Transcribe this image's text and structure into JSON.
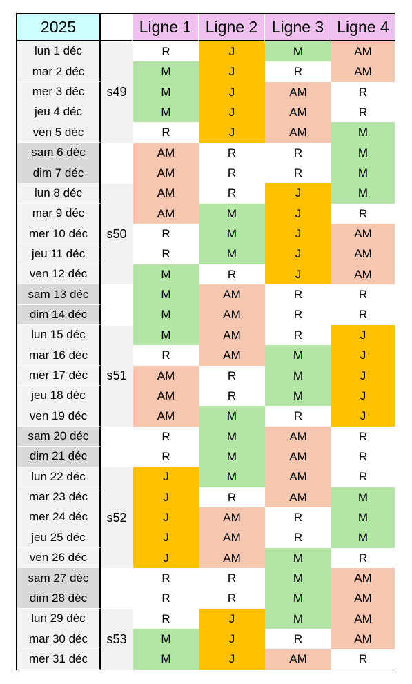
{
  "year": "2025",
  "lines": [
    "Ligne 1",
    "Ligne 2",
    "Ligne 3",
    "Ligne 4"
  ],
  "colors": {
    "year_bg": "#ccffff",
    "header_bg": "#f0c0f0",
    "date_weekday_bg": "#f2f2f2",
    "date_weekend_bg": "#d9d9d9",
    "week_bg": "#f2f2f2",
    "M": "#b3e6a6",
    "J": "#ffc000",
    "AM": "#f6c6b0",
    "R": "#ffffff"
  },
  "weeks": [
    {
      "label": "s49",
      "start": 0,
      "count": 5
    },
    {
      "label": "s50",
      "start": 7,
      "count": 5
    },
    {
      "label": "s51",
      "start": 14,
      "count": 5
    },
    {
      "label": "s52",
      "start": 21,
      "count": 5
    },
    {
      "label": "s53",
      "start": 28,
      "count": 3
    }
  ],
  "rows": [
    {
      "date": "lun 1 déc",
      "weekend": false,
      "codes": [
        "R",
        "J",
        "M",
        "AM"
      ]
    },
    {
      "date": "mar 2 déc",
      "weekend": false,
      "codes": [
        "M",
        "J",
        "R",
        "AM"
      ]
    },
    {
      "date": "mer 3 déc",
      "weekend": false,
      "codes": [
        "M",
        "J",
        "AM",
        "R"
      ]
    },
    {
      "date": "jeu 4 déc",
      "weekend": false,
      "codes": [
        "M",
        "J",
        "AM",
        "R"
      ]
    },
    {
      "date": "ven 5 déc",
      "weekend": false,
      "codes": [
        "R",
        "J",
        "AM",
        "M"
      ]
    },
    {
      "date": "sam 6 déc",
      "weekend": true,
      "codes": [
        "AM",
        "R",
        "R",
        "M"
      ]
    },
    {
      "date": "dim 7 déc",
      "weekend": true,
      "codes": [
        "AM",
        "R",
        "R",
        "M"
      ]
    },
    {
      "date": "lun 8 déc",
      "weekend": false,
      "codes": [
        "AM",
        "R",
        "J",
        "M"
      ]
    },
    {
      "date": "mar 9 déc",
      "weekend": false,
      "codes": [
        "AM",
        "M",
        "J",
        "R"
      ]
    },
    {
      "date": "mer 10 déc",
      "weekend": false,
      "codes": [
        "R",
        "M",
        "J",
        "AM"
      ]
    },
    {
      "date": "jeu 11 déc",
      "weekend": false,
      "codes": [
        "R",
        "M",
        "J",
        "AM"
      ]
    },
    {
      "date": "ven 12 déc",
      "weekend": false,
      "codes": [
        "M",
        "R",
        "J",
        "AM"
      ]
    },
    {
      "date": "sam 13 déc",
      "weekend": true,
      "codes": [
        "M",
        "AM",
        "R",
        "R"
      ]
    },
    {
      "date": "dim 14 déc",
      "weekend": true,
      "codes": [
        "M",
        "AM",
        "R",
        "R"
      ]
    },
    {
      "date": "lun 15 déc",
      "weekend": false,
      "codes": [
        "M",
        "AM",
        "R",
        "J"
      ]
    },
    {
      "date": "mar 16 déc",
      "weekend": false,
      "codes": [
        "R",
        "AM",
        "M",
        "J"
      ]
    },
    {
      "date": "mer 17 déc",
      "weekend": false,
      "codes": [
        "AM",
        "R",
        "M",
        "J"
      ]
    },
    {
      "date": "jeu 18 déc",
      "weekend": false,
      "codes": [
        "AM",
        "R",
        "M",
        "J"
      ]
    },
    {
      "date": "ven 19 déc",
      "weekend": false,
      "codes": [
        "AM",
        "M",
        "R",
        "J"
      ]
    },
    {
      "date": "sam 20 déc",
      "weekend": true,
      "codes": [
        "R",
        "M",
        "AM",
        "R"
      ]
    },
    {
      "date": "dim 21 déc",
      "weekend": true,
      "codes": [
        "R",
        "M",
        "AM",
        "R"
      ]
    },
    {
      "date": "lun 22 déc",
      "weekend": false,
      "codes": [
        "J",
        "M",
        "AM",
        "R"
      ]
    },
    {
      "date": "mar 23 déc",
      "weekend": false,
      "codes": [
        "J",
        "R",
        "AM",
        "M"
      ]
    },
    {
      "date": "mer 24 déc",
      "weekend": false,
      "codes": [
        "J",
        "AM",
        "R",
        "M"
      ]
    },
    {
      "date": "jeu 25 déc",
      "weekend": false,
      "codes": [
        "J",
        "AM",
        "R",
        "M"
      ]
    },
    {
      "date": "ven 26 déc",
      "weekend": false,
      "codes": [
        "J",
        "AM",
        "M",
        "R"
      ]
    },
    {
      "date": "sam 27 déc",
      "weekend": true,
      "codes": [
        "R",
        "R",
        "M",
        "AM"
      ]
    },
    {
      "date": "dim 28 déc",
      "weekend": true,
      "codes": [
        "R",
        "R",
        "M",
        "AM"
      ]
    },
    {
      "date": "lun 29 déc",
      "weekend": false,
      "codes": [
        "R",
        "J",
        "M",
        "AM"
      ]
    },
    {
      "date": "mar 30 déc",
      "weekend": false,
      "codes": [
        "M",
        "J",
        "R",
        "AM"
      ]
    },
    {
      "date": "mer 31 déc",
      "weekend": false,
      "codes": [
        "M",
        "J",
        "AM",
        "R"
      ]
    }
  ]
}
